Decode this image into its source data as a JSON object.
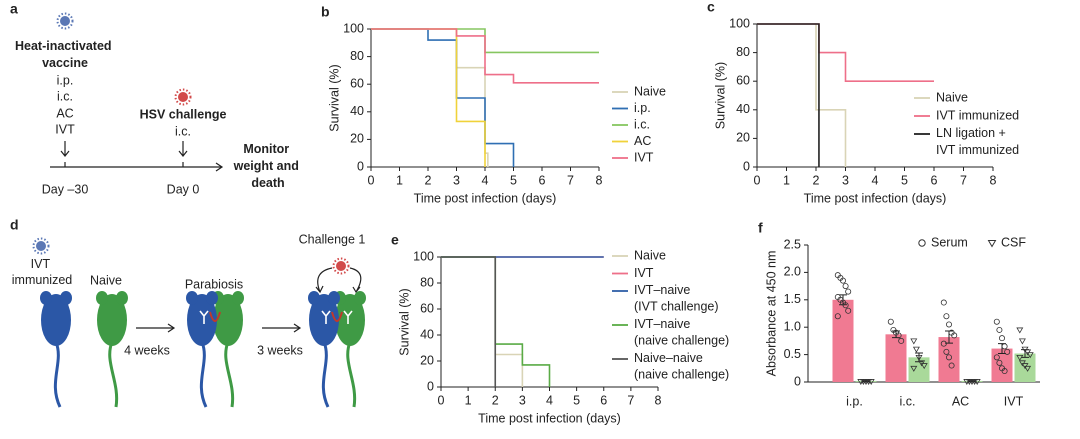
{
  "panel_a": {
    "label": "a",
    "vaccine": "Heat-inactivated vaccine",
    "routes": [
      "i.p.",
      "i.c.",
      "AC",
      "IVT"
    ],
    "challenge": "HSV challenge",
    "challenge_route": "i.c.",
    "monitor": "Monitor weight and death",
    "day_vaccine": "Day –30",
    "day_challenge": "Day 0"
  },
  "panel_d": {
    "label": "d",
    "immunized": "IVT immunized",
    "naive": "Naive",
    "parabiosis": "Parabiosis",
    "challenge": "Challenge 1",
    "interval_1": "4 weeks",
    "interval_2": "3 weeks"
  },
  "chart_data": [
    {
      "type": "line",
      "drawstyle": "steps-post",
      "label": "b",
      "xlabel": "Time post infection (days)",
      "ylabel": "Survival (%)",
      "xlim": [
        0,
        8
      ],
      "ylim": [
        0,
        100
      ],
      "xticks": [
        0,
        1,
        2,
        3,
        4,
        5,
        6,
        7,
        8
      ],
      "yticks": [
        0,
        20,
        40,
        60,
        80,
        100
      ],
      "series": [
        {
          "name": "Naive",
          "color": "#d9d4b6",
          "x": [
            0,
            3,
            4,
            4.1
          ],
          "values": [
            100,
            72,
            10,
            0
          ]
        },
        {
          "name": "i.p.",
          "color": "#2f6fb3",
          "x": [
            0,
            2,
            3,
            4,
            5
          ],
          "values": [
            100,
            92,
            50,
            17,
            0
          ]
        },
        {
          "name": "i.c.",
          "color": "#86c660",
          "x": [
            0,
            4,
            8
          ],
          "values": [
            100,
            83,
            83
          ]
        },
        {
          "name": "AC",
          "color": "#f0d23a",
          "x": [
            0,
            3,
            4
          ],
          "values": [
            100,
            33,
            0
          ]
        },
        {
          "name": "IVT",
          "color": "#ee6f89",
          "x": [
            0,
            3,
            4,
            5,
            8
          ],
          "values": [
            100,
            95,
            67,
            61,
            61
          ]
        }
      ]
    },
    {
      "type": "line",
      "drawstyle": "steps-post",
      "label": "c",
      "xlabel": "Time post infection (days)",
      "ylabel": "Survival (%)",
      "xlim": [
        0,
        8
      ],
      "ylim": [
        0,
        100
      ],
      "xticks": [
        0,
        1,
        2,
        3,
        4,
        5,
        6,
        7,
        8
      ],
      "yticks": [
        0,
        20,
        40,
        60,
        80,
        100
      ],
      "series": [
        {
          "name": "Naive",
          "color": "#d9d4b6",
          "x": [
            0,
            2,
            3
          ],
          "values": [
            100,
            40,
            0
          ]
        },
        {
          "name": "IVT immunized",
          "color": "#ee6f89",
          "x": [
            0,
            2.1,
            3,
            6
          ],
          "values": [
            100,
            80,
            60,
            60
          ]
        },
        {
          "name": "LN ligation + IVT immunized",
          "color": "#222222",
          "x": [
            0,
            2.1
          ],
          "values": [
            100,
            0
          ]
        }
      ]
    },
    {
      "type": "line",
      "drawstyle": "steps-post",
      "label": "e",
      "xlabel": "Time post infection (days)",
      "ylabel": "Survival (%)",
      "xlim": [
        0,
        8
      ],
      "ylim": [
        0,
        100
      ],
      "xticks": [
        0,
        1,
        2,
        3,
        4,
        5,
        6,
        7,
        8
      ],
      "yticks": [
        0,
        20,
        40,
        60,
        80,
        100
      ],
      "series": [
        {
          "name": "Naive",
          "color": "#d9d4b6",
          "x": [
            0,
            2,
            3
          ],
          "values": [
            100,
            25,
            0
          ]
        },
        {
          "name": "IVT",
          "color": "#ee6f89",
          "x": [
            0,
            6
          ],
          "values": [
            100,
            100
          ]
        },
        {
          "name": "IVT–naive (IVT challenge)",
          "color": "#2f5fa8",
          "x": [
            0,
            6
          ],
          "values": [
            100,
            100
          ]
        },
        {
          "name": "IVT–naive (naive challenge)",
          "color": "#5aab46",
          "x": [
            0,
            2,
            3,
            4
          ],
          "values": [
            100,
            33,
            17,
            0
          ]
        },
        {
          "name": "Naive–naive (naive challenge)",
          "color": "#555555",
          "x": [
            0,
            2
          ],
          "values": [
            100,
            0
          ]
        }
      ]
    },
    {
      "type": "bar",
      "label": "f",
      "ylabel": "Absorbance at 450 nm",
      "categories": [
        "i.p.",
        "i.c.",
        "AC",
        "IVT"
      ],
      "ylim": [
        0,
        2.5
      ],
      "yticks": [
        0,
        0.5,
        {
          "value": 1,
          "label": "1.0"
        },
        1.5,
        {
          "value": 2,
          "label": "2.0"
        },
        2.5
      ],
      "series": [
        {
          "name": "Serum",
          "color": "#f07a92",
          "marker": "circle",
          "values": [
            1.5,
            0.87,
            0.82,
            0.61
          ],
          "errors": [
            0.09,
            0.06,
            0.11,
            0.09
          ],
          "points": [
            [
              1.95,
              1.9,
              1.85,
              1.75,
              1.65,
              1.55,
              1.5,
              1.45,
              1.4,
              1.3,
              1.2
            ],
            [
              1.1,
              0.95,
              0.9,
              0.85,
              0.75
            ],
            [
              1.45,
              1.2,
              1.05,
              0.9,
              0.85,
              0.7,
              0.55,
              0.45,
              0.3
            ],
            [
              1.1,
              0.95,
              0.8,
              0.65,
              0.55,
              0.45,
              0.35,
              0.25,
              0.2
            ]
          ]
        },
        {
          "name": "CSF",
          "color": "#a9d99a",
          "marker": "triangle",
          "values": [
            0.02,
            0.45,
            0.02,
            0.52
          ],
          "errors": [
            0.01,
            0.08,
            0.01,
            0.07
          ],
          "points": [
            [
              0.01,
              0.01,
              0.01,
              0.01,
              0.01
            ],
            [
              0.75,
              0.6,
              0.45,
              0.35,
              0.3,
              0.25
            ],
            [
              0.01,
              0.01,
              0.01,
              0.01,
              0.01
            ],
            [
              0.95,
              0.75,
              0.6,
              0.55,
              0.5,
              0.45,
              0.35,
              0.3,
              0.25
            ]
          ]
        }
      ]
    }
  ]
}
